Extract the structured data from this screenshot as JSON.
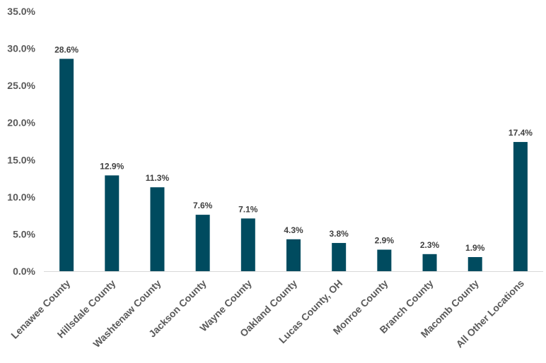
{
  "chart_data": {
    "type": "bar",
    "title": "",
    "xlabel": "",
    "ylabel": "",
    "ylim": [
      0,
      35
    ],
    "yticks": [
      "0.0%",
      "5.0%",
      "10.0%",
      "15.0%",
      "20.0%",
      "25.0%",
      "30.0%",
      "35.0%"
    ],
    "grid": false,
    "legend": "none",
    "bar_color": "#004B5F",
    "categories": [
      "Lenawee County",
      "Hillsdale County",
      "Washtenaw County",
      "Jackson County",
      "Wayne County",
      "Oakland County",
      "Lucas County, OH",
      "Monroe County",
      "Branch County",
      "Macomb County",
      "All Other Locations"
    ],
    "values": [
      28.6,
      12.9,
      11.3,
      7.6,
      7.1,
      4.3,
      3.8,
      2.9,
      2.3,
      1.9,
      17.4
    ],
    "data_labels": [
      "28.6%",
      "12.9%",
      "11.3%",
      "7.6%",
      "7.1%",
      "4.3%",
      "3.8%",
      "2.9%",
      "2.3%",
      "1.9%",
      "17.4%"
    ]
  }
}
